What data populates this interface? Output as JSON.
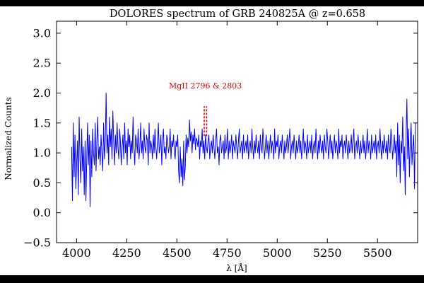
{
  "chart_data": {
    "type": "line",
    "title": "DOLORES spectrum of GRB 240825A @ z=0.658",
    "xlabel": "λ [Å]",
    "ylabel": "Normalized Counts",
    "xlim": [
      3900,
      5700
    ],
    "ylim": [
      -0.5,
      3.2
    ],
    "xticks": [
      4000,
      4250,
      4500,
      4750,
      5000,
      5250,
      5500
    ],
    "yticks": [
      -0.5,
      0.0,
      0.5,
      1.0,
      1.5,
      2.0,
      2.5,
      3.0
    ],
    "xtick_labels": [
      "4000",
      "4250",
      "4500",
      "4750",
      "5000",
      "5250",
      "5500"
    ],
    "ytick_labels": [
      "−0.5",
      "0.0",
      "0.5",
      "1.0",
      "1.5",
      "2.0",
      "2.5",
      "3.0"
    ],
    "grid": false,
    "series": [
      {
        "color": "#0000ff",
        "x_start": 3975,
        "x_step": 4.2,
        "values": [
          1.1,
          0.2,
          1.5,
          0.6,
          1.3,
          0.4,
          0.8,
          1.2,
          0.3,
          1.6,
          0.9,
          0.5,
          1.4,
          0.7,
          1.1,
          0.3,
          1.2,
          0.2,
          0.9,
          1.5,
          0.8,
          1.3,
          0.1,
          1.2,
          0.6,
          1.4,
          1.0,
          0.8,
          1.5,
          0.7,
          1.2,
          1.6,
          0.9,
          1.1,
          0.8,
          1.3,
          1.0,
          0.7,
          1.5,
          0.9,
          1.2,
          2.0,
          1.0,
          1.3,
          0.8,
          1.6,
          1.1,
          1.4,
          0.9,
          1.7,
          1.2,
          0.8,
          1.3,
          1.0,
          1.5,
          1.1,
          0.9,
          1.4,
          1.2,
          0.8,
          1.1,
          1.3,
          0.9,
          1.5,
          1.0,
          1.2,
          0.8,
          1.4,
          1.1,
          1.3,
          0.9,
          1.2,
          1.0,
          1.6,
          1.1,
          0.8,
          1.3,
          1.2,
          1.0,
          1.4,
          0.9,
          1.1,
          1.5,
          1.0,
          1.2,
          0.9,
          1.4,
          1.1,
          1.0,
          1.3,
          1.2,
          0.8,
          1.5,
          1.0,
          1.2,
          1.1,
          0.9,
          1.3,
          1.0,
          1.4,
          1.1,
          0.9,
          1.2,
          1.5,
          1.0,
          1.1,
          1.3,
          0.8,
          1.2,
          1.4,
          1.0,
          1.1,
          0.9,
          1.3,
          1.2,
          1.0,
          1.1,
          1.4,
          0.9,
          1.2,
          1.1,
          1.3,
          1.0,
          0.9,
          1.2,
          1.1,
          1.3,
          0.7,
          0.5,
          1.1,
          0.6,
          0.9,
          0.45,
          1.2,
          0.55,
          0.8,
          1.3,
          1.0,
          1.25,
          1.1,
          1.55,
          1.2,
          1.35,
          1.0,
          1.3,
          1.15,
          1.4,
          1.05,
          1.25,
          1.2,
          1.1,
          1.3,
          0.9,
          1.2,
          1.1,
          1.4,
          1.0,
          1.2,
          0.9,
          1.3,
          1.1,
          1.0,
          1.2,
          1.3,
          0.9,
          1.1,
          1.2,
          1.0,
          1.3,
          1.1,
          0.9,
          1.2,
          1.4,
          1.0,
          1.1,
          0.8,
          1.2,
          1.3,
          1.0,
          1.1,
          1.2,
          0.9,
          1.3,
          1.0,
          1.1,
          1.4,
          0.9,
          1.2,
          1.0,
          1.1,
          1.3,
          0.9,
          1.2,
          1.1,
          1.0,
          1.3,
          1.1,
          0.9,
          1.2,
          1.4,
          1.0,
          1.1,
          1.2,
          0.9,
          1.3,
          1.0,
          1.1,
          1.2,
          1.0,
          1.3,
          0.9,
          1.1,
          1.2,
          1.0,
          1.4,
          1.1,
          0.9,
          1.2,
          1.0,
          1.3,
          1.1,
          1.0,
          1.2,
          0.9,
          1.3,
          1.1,
          1.0,
          1.4,
          1.2,
          0.9,
          1.1,
          1.3,
          1.0,
          1.2,
          0.9,
          1.1,
          1.3,
          1.0,
          1.2,
          1.1,
          0.9,
          1.4,
          1.0,
          1.2,
          1.1,
          1.3,
          0.9,
          1.1,
          1.2,
          1.0,
          1.3,
          1.1,
          0.9,
          1.2,
          1.0,
          1.1,
          1.3,
          1.0,
          1.2,
          1.4,
          0.9,
          1.1,
          1.2,
          1.0,
          1.3,
          1.1,
          0.9,
          1.2,
          1.0,
          1.1,
          1.3,
          1.0,
          1.2,
          0.9,
          1.1,
          1.4,
          1.0,
          1.2,
          1.1,
          0.9,
          1.3,
          1.0,
          1.1,
          1.2,
          1.0,
          1.3,
          0.9,
          1.1,
          1.2,
          1.0,
          1.4,
          1.1,
          0.9,
          1.2,
          1.0,
          1.3,
          1.1,
          1.0,
          1.2,
          0.9,
          1.3,
          1.1,
          1.0,
          1.4,
          1.2,
          0.9,
          1.1,
          1.3,
          1.0,
          1.2,
          0.9,
          1.1,
          1.3,
          1.0,
          1.2,
          1.1,
          0.9,
          1.4,
          1.0,
          1.2,
          1.1,
          1.3,
          0.9,
          1.1,
          1.2,
          1.0,
          1.3,
          1.1,
          0.9,
          1.2,
          1.0,
          1.1,
          1.3,
          1.0,
          1.2,
          1.4,
          0.9,
          1.1,
          1.2,
          1.0,
          1.3,
          1.1,
          0.9,
          1.2,
          1.0,
          1.1,
          1.3,
          1.0,
          1.2,
          0.9,
          1.1,
          1.4,
          1.0,
          1.2,
          1.1,
          0.9,
          1.3,
          1.0,
          1.1,
          1.2,
          1.0,
          1.3,
          0.9,
          1.1,
          1.2,
          1.0,
          1.4,
          1.1,
          0.9,
          1.2,
          1.0,
          1.3,
          1.1,
          1.0,
          1.2,
          0.9,
          1.3,
          1.1,
          1.0,
          1.4,
          1.2,
          0.9,
          1.1,
          1.3,
          1.0,
          1.2,
          0.6,
          1.5,
          0.8,
          1.3,
          0.5,
          1.2,
          1.0,
          1.6,
          0.7,
          1.1,
          0.3,
          1.3,
          1.9,
          0.9,
          1.4,
          0.6,
          1.2,
          1.5,
          0.8,
          1.1,
          1.3,
          0.4,
          1.5
        ]
      }
    ],
    "annotations": [
      {
        "text": "MgII 2796 & 2803",
        "color": "#e00000",
        "line_x": [
          4636,
          4648
        ],
        "line_y": [
          1.28,
          1.78
        ]
      }
    ]
  }
}
